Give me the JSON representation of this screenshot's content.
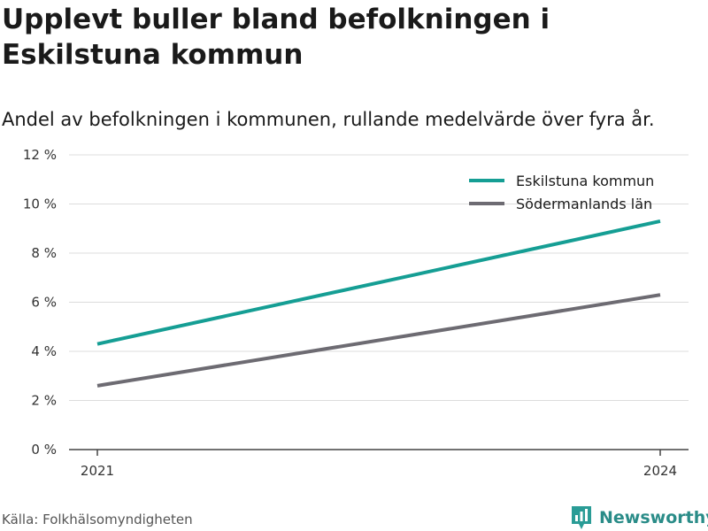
{
  "title": "Upplevt buller bland befolkningen i Eskilstuna kommun",
  "subtitle": "Andel av befolkningen i kommunen, rullande medelvärde över fyra år.",
  "source": "Källa: Folkhälsomyndigheten",
  "brand": {
    "name": "Newsworthy",
    "icon": "newsworthy-bar-chart-icon",
    "color": "#2a9c96"
  },
  "chart_data": {
    "type": "line",
    "x": [
      "2021",
      "2024"
    ],
    "ylim": [
      0,
      12
    ],
    "yticks": [
      0,
      2,
      4,
      6,
      8,
      10,
      12
    ],
    "ytick_labels": [
      "0 %",
      "2 %",
      "4 %",
      "6 %",
      "8 %",
      "10 %",
      "12 %"
    ],
    "grid": true,
    "legend_position": "top-right",
    "series": [
      {
        "name": "Eskilstuna kommun",
        "values": [
          4.3,
          9.3
        ],
        "color": "#159e94"
      },
      {
        "name": "Södermanlands län",
        "values": [
          2.6,
          6.3
        ],
        "color": "#6d6b72"
      }
    ]
  }
}
